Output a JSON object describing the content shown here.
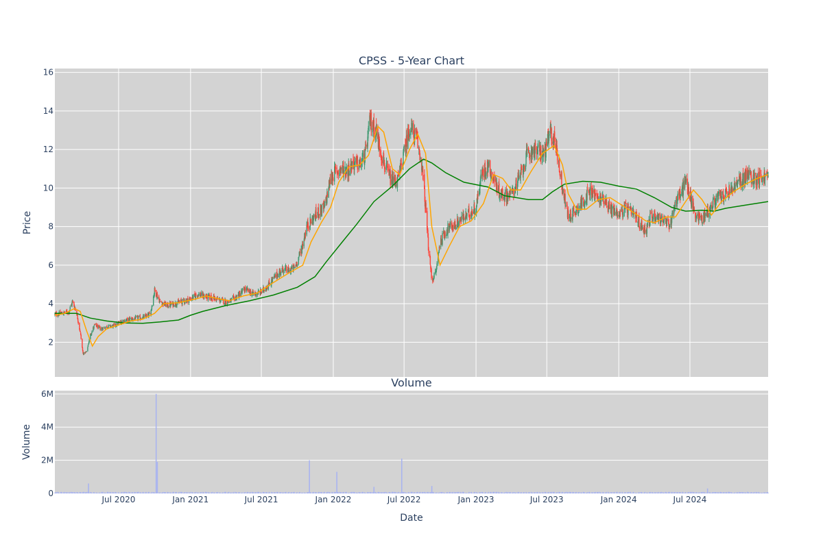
{
  "chart_data": [
    {
      "id": "price",
      "type": "candlestick",
      "title": "CPSS - 5-Year Chart",
      "ylabel": "Price",
      "ylim": [
        0.2,
        16.2
      ],
      "yticks": [
        2,
        4,
        6,
        8,
        10,
        12,
        14,
        16
      ],
      "xlim": [
        "2020-01-20",
        "2025-01-17"
      ],
      "xticks": [
        "2020-07-01",
        "2021-01-01",
        "2021-07-01",
        "2022-01-01",
        "2022-07-01",
        "2023-01-01",
        "2023-07-01",
        "2024-01-01",
        "2024-07-01"
      ],
      "grid": true,
      "colors": {
        "background": "#d3d3d3",
        "grid": "#ffffff",
        "increasing": "#3d9970",
        "decreasing": "#ff4136",
        "ma_short": "#ffa500",
        "ma_long": "#008000"
      },
      "close_series": [
        [
          "2020-01-20",
          3.45
        ],
        [
          "2020-02-10",
          3.5
        ],
        [
          "2020-02-25",
          3.6
        ],
        [
          "2020-03-05",
          4.1
        ],
        [
          "2020-03-15",
          3.6
        ],
        [
          "2020-03-25",
          2.5
        ],
        [
          "2020-04-01",
          1.4
        ],
        [
          "2020-04-10",
          1.5
        ],
        [
          "2020-04-20",
          2.4
        ],
        [
          "2020-05-01",
          2.9
        ],
        [
          "2020-05-15",
          2.7
        ],
        [
          "2020-06-01",
          2.8
        ],
        [
          "2020-06-20",
          2.85
        ],
        [
          "2020-07-10",
          3.1
        ],
        [
          "2020-08-01",
          3.2
        ],
        [
          "2020-08-20",
          3.25
        ],
        [
          "2020-09-05",
          3.3
        ],
        [
          "2020-09-20",
          3.45
        ],
        [
          "2020-10-01",
          4.7
        ],
        [
          "2020-10-15",
          4.1
        ],
        [
          "2020-11-01",
          3.9
        ],
        [
          "2020-11-20",
          4.0
        ],
        [
          "2020-12-10",
          4.1
        ],
        [
          "2021-01-01",
          4.25
        ],
        [
          "2021-01-20",
          4.5
        ],
        [
          "2021-02-10",
          4.35
        ],
        [
          "2021-03-01",
          4.3
        ],
        [
          "2021-03-20",
          4.15
        ],
        [
          "2021-04-10",
          4.1
        ],
        [
          "2021-05-01",
          4.4
        ],
        [
          "2021-05-20",
          4.75
        ],
        [
          "2021-06-10",
          4.5
        ],
        [
          "2021-07-01",
          4.6
        ],
        [
          "2021-07-20",
          5.0
        ],
        [
          "2021-08-10",
          5.5
        ],
        [
          "2021-08-25",
          5.8
        ],
        [
          "2021-09-10",
          5.7
        ],
        [
          "2021-09-25",
          5.9
        ],
        [
          "2021-10-10",
          6.7
        ],
        [
          "2021-10-25",
          8.0
        ],
        [
          "2021-11-10",
          8.4
        ],
        [
          "2021-11-25",
          8.8
        ],
        [
          "2021-12-10",
          9.0
        ],
        [
          "2021-12-25",
          10.5
        ],
        [
          "2022-01-05",
          10.8
        ],
        [
          "2022-01-20",
          11.0
        ],
        [
          "2022-02-05",
          10.9
        ],
        [
          "2022-02-20",
          11.3
        ],
        [
          "2022-03-10",
          11.2
        ],
        [
          "2022-03-25",
          11.8
        ],
        [
          "2022-04-05",
          13.5
        ],
        [
          "2022-04-20",
          13.0
        ],
        [
          "2022-05-01",
          12.0
        ],
        [
          "2022-05-15",
          11.0
        ],
        [
          "2022-06-01",
          10.3
        ],
        [
          "2022-06-15",
          10.4
        ],
        [
          "2022-07-01",
          11.8
        ],
        [
          "2022-07-15",
          13.2
        ],
        [
          "2022-08-01",
          12.6
        ],
        [
          "2022-08-15",
          11.3
        ],
        [
          "2022-08-25",
          9.0
        ],
        [
          "2022-09-01",
          7.0
        ],
        [
          "2022-09-10",
          5.2
        ],
        [
          "2022-09-20",
          5.6
        ],
        [
          "2022-10-01",
          7.2
        ],
        [
          "2022-10-20",
          7.9
        ],
        [
          "2022-11-10",
          8.1
        ],
        [
          "2022-11-25",
          8.4
        ],
        [
          "2022-12-10",
          8.6
        ],
        [
          "2023-01-01",
          9.0
        ],
        [
          "2023-01-15",
          10.7
        ],
        [
          "2023-02-01",
          11.2
        ],
        [
          "2023-02-15",
          10.5
        ],
        [
          "2023-03-01",
          9.8
        ],
        [
          "2023-03-15",
          9.6
        ],
        [
          "2023-04-01",
          9.7
        ],
        [
          "2023-04-20",
          10.4
        ],
        [
          "2023-05-10",
          11.6
        ],
        [
          "2023-05-25",
          12.0
        ],
        [
          "2023-06-10",
          11.9
        ],
        [
          "2023-06-25",
          11.8
        ],
        [
          "2023-07-10",
          12.9
        ],
        [
          "2023-07-25",
          12.2
        ],
        [
          "2023-08-10",
          10.0
        ],
        [
          "2023-08-25",
          8.5
        ],
        [
          "2023-09-10",
          8.8
        ],
        [
          "2023-09-25",
          9.1
        ],
        [
          "2023-10-10",
          9.6
        ],
        [
          "2023-10-25",
          9.8
        ],
        [
          "2023-11-10",
          9.4
        ],
        [
          "2023-11-25",
          9.5
        ],
        [
          "2023-12-10",
          8.9
        ],
        [
          "2024-01-01",
          8.7
        ],
        [
          "2024-01-20",
          8.9
        ],
        [
          "2024-02-10",
          8.6
        ],
        [
          "2024-02-25",
          8.1
        ],
        [
          "2024-03-10",
          7.8
        ],
        [
          "2024-03-25",
          8.6
        ],
        [
          "2024-04-10",
          8.5
        ],
        [
          "2024-04-25",
          8.3
        ],
        [
          "2024-05-10",
          8.0
        ],
        [
          "2024-05-25",
          9.3
        ],
        [
          "2024-06-10",
          9.8
        ],
        [
          "2024-06-20",
          10.4
        ],
        [
          "2024-07-01",
          9.6
        ],
        [
          "2024-07-15",
          8.6
        ],
        [
          "2024-08-01",
          8.4
        ],
        [
          "2024-08-20",
          8.9
        ],
        [
          "2024-09-10",
          9.5
        ],
        [
          "2024-09-25",
          9.6
        ],
        [
          "2024-10-10",
          9.8
        ],
        [
          "2024-10-25",
          10.1
        ],
        [
          "2024-11-10",
          10.4
        ],
        [
          "2024-11-25",
          10.7
        ],
        [
          "2024-12-10",
          10.5
        ],
        [
          "2025-01-17",
          10.6
        ]
      ],
      "ma_short_series": [
        [
          "2020-01-20",
          3.4
        ],
        [
          "2020-02-15",
          3.5
        ],
        [
          "2020-03-10",
          3.75
        ],
        [
          "2020-03-25",
          3.6
        ],
        [
          "2020-04-10",
          2.6
        ],
        [
          "2020-04-25",
          1.8
        ],
        [
          "2020-05-10",
          2.3
        ],
        [
          "2020-06-01",
          2.7
        ],
        [
          "2020-07-01",
          2.9
        ],
        [
          "2020-08-01",
          3.1
        ],
        [
          "2020-09-01",
          3.2
        ],
        [
          "2020-10-01",
          3.5
        ],
        [
          "2020-10-25",
          4.0
        ],
        [
          "2020-12-01",
          4.05
        ],
        [
          "2021-01-15",
          4.25
        ],
        [
          "2021-02-10",
          4.4
        ],
        [
          "2021-03-15",
          4.25
        ],
        [
          "2021-04-10",
          4.15
        ],
        [
          "2021-05-15",
          4.4
        ],
        [
          "2021-06-20",
          4.55
        ],
        [
          "2021-08-01",
          5.1
        ],
        [
          "2021-09-10",
          5.6
        ],
        [
          "2021-10-15",
          6.0
        ],
        [
          "2021-11-05",
          7.2
        ],
        [
          "2021-12-01",
          8.2
        ],
        [
          "2021-12-25",
          9.0
        ],
        [
          "2022-01-15",
          10.3
        ],
        [
          "2022-02-10",
          11.1
        ],
        [
          "2022-03-10",
          11.2
        ],
        [
          "2022-04-01",
          11.7
        ],
        [
          "2022-04-25",
          13.2
        ],
        [
          "2022-05-10",
          12.9
        ],
        [
          "2022-06-01",
          11.0
        ],
        [
          "2022-06-20",
          10.7
        ],
        [
          "2022-07-15",
          12.0
        ],
        [
          "2022-08-05",
          12.8
        ],
        [
          "2022-08-25",
          11.8
        ],
        [
          "2022-09-10",
          8.0
        ],
        [
          "2022-10-01",
          6.0
        ],
        [
          "2022-10-25",
          7.0
        ],
        [
          "2022-11-20",
          8.0
        ],
        [
          "2022-12-20",
          8.3
        ],
        [
          "2023-01-20",
          9.2
        ],
        [
          "2023-02-15",
          10.7
        ],
        [
          "2023-03-10",
          10.5
        ],
        [
          "2023-04-01",
          9.9
        ],
        [
          "2023-04-25",
          9.9
        ],
        [
          "2023-05-20",
          10.8
        ],
        [
          "2023-06-20",
          11.8
        ],
        [
          "2023-07-20",
          12.2
        ],
        [
          "2023-08-10",
          11.2
        ],
        [
          "2023-08-25",
          9.7
        ],
        [
          "2023-09-15",
          8.9
        ],
        [
          "2023-10-10",
          8.9
        ],
        [
          "2023-11-10",
          9.4
        ],
        [
          "2023-12-10",
          9.5
        ],
        [
          "2024-01-10",
          9.1
        ],
        [
          "2024-02-10",
          8.7
        ],
        [
          "2024-03-10",
          8.3
        ],
        [
          "2024-04-01",
          8.2
        ],
        [
          "2024-05-01",
          8.5
        ],
        [
          "2024-05-25",
          8.5
        ],
        [
          "2024-06-20",
          9.3
        ],
        [
          "2024-07-10",
          9.9
        ],
        [
          "2024-08-01",
          9.4
        ],
        [
          "2024-08-25",
          8.6
        ],
        [
          "2024-09-20",
          9.3
        ],
        [
          "2024-10-20",
          9.8
        ],
        [
          "2024-11-20",
          10.2
        ],
        [
          "2024-12-20",
          10.5
        ],
        [
          "2025-01-17",
          10.7
        ]
      ],
      "ma_long_series": [
        [
          "2020-01-20",
          3.5
        ],
        [
          "2020-03-15",
          3.5
        ],
        [
          "2020-04-20",
          3.25
        ],
        [
          "2020-06-01",
          3.1
        ],
        [
          "2020-07-15",
          3.0
        ],
        [
          "2020-09-01",
          2.98
        ],
        [
          "2020-10-15",
          3.05
        ],
        [
          "2020-12-01",
          3.15
        ],
        [
          "2021-01-01",
          3.4
        ],
        [
          "2021-02-01",
          3.6
        ],
        [
          "2021-04-01",
          3.9
        ],
        [
          "2021-06-01",
          4.15
        ],
        [
          "2021-08-01",
          4.45
        ],
        [
          "2021-10-01",
          4.85
        ],
        [
          "2021-11-15",
          5.4
        ],
        [
          "2021-12-15",
          6.2
        ],
        [
          "2022-01-20",
          7.1
        ],
        [
          "2022-03-01",
          8.1
        ],
        [
          "2022-04-15",
          9.3
        ],
        [
          "2022-06-01",
          10.1
        ],
        [
          "2022-07-15",
          11.0
        ],
        [
          "2022-08-20",
          11.5
        ],
        [
          "2022-09-10",
          11.3
        ],
        [
          "2022-10-15",
          10.8
        ],
        [
          "2022-12-01",
          10.3
        ],
        [
          "2023-02-01",
          10.05
        ],
        [
          "2023-03-15",
          9.6
        ],
        [
          "2023-05-15",
          9.4
        ],
        [
          "2023-06-20",
          9.4
        ],
        [
          "2023-07-15",
          9.8
        ],
        [
          "2023-08-15",
          10.2
        ],
        [
          "2023-10-01",
          10.35
        ],
        [
          "2023-11-15",
          10.3
        ],
        [
          "2024-01-01",
          10.1
        ],
        [
          "2024-02-15",
          9.95
        ],
        [
          "2024-04-01",
          9.5
        ],
        [
          "2024-05-15",
          9.0
        ],
        [
          "2024-06-20",
          8.8
        ],
        [
          "2024-08-01",
          8.85
        ],
        [
          "2024-09-01",
          8.8
        ],
        [
          "2024-10-01",
          8.95
        ],
        [
          "2024-11-15",
          9.1
        ],
        [
          "2025-01-17",
          9.3
        ]
      ]
    },
    {
      "id": "volume",
      "type": "bar",
      "title": "Volume",
      "xlabel": "Date",
      "ylabel": "Volume",
      "ylim": [
        0,
        6200000
      ],
      "yticks": [
        0,
        2000000,
        4000000,
        6000000
      ],
      "ytick_labels": [
        "0",
        "2M",
        "4M",
        "6M"
      ],
      "xticks": [
        "2020-07-01",
        "2021-01-01",
        "2021-07-01",
        "2022-01-01",
        "2022-07-01",
        "2023-01-01",
        "2023-07-01",
        "2024-01-01",
        "2024-07-01"
      ],
      "xtick_labels": [
        "Jul 2020",
        "Jan 2021",
        "Jul 2021",
        "Jan 2022",
        "Jul 2022",
        "Jan 2023",
        "Jul 2023",
        "Jan 2024",
        "Jul 2024"
      ],
      "color": "#a9b4f0",
      "baseline": 60000,
      "spikes": [
        [
          "2020-04-15",
          600000
        ],
        [
          "2020-10-05",
          6000000
        ],
        [
          "2020-10-08",
          1900000
        ],
        [
          "2021-11-01",
          2000000
        ],
        [
          "2022-01-10",
          1300000
        ],
        [
          "2022-04-15",
          400000
        ],
        [
          "2022-06-25",
          2100000
        ],
        [
          "2022-09-10",
          450000
        ],
        [
          "2024-08-15",
          300000
        ]
      ]
    }
  ]
}
